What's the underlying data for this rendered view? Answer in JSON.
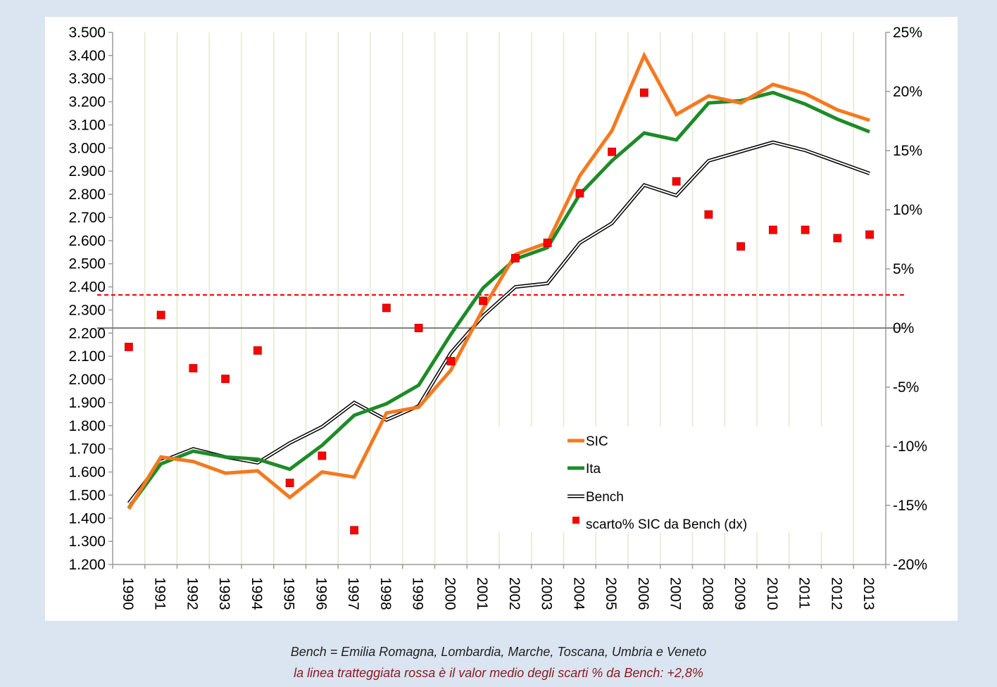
{
  "captions": {
    "line1": "Bench = Emilia Romagna, Lombardia, Marche, Toscana, Umbria e Veneto",
    "line2": "la linea tratteggiata rossa è il valor medio degli scarti % da Bench: +2,8%"
  },
  "colors": {
    "sic": "#f47920",
    "ita": "#1e8b28",
    "bench": "#000000",
    "scarto": "#ff0000",
    "mean_line": "#ff0000",
    "zero_line": "#808080",
    "grid": "#e4e8cf"
  },
  "chart_data": {
    "type": "line",
    "categories": [
      "1990",
      "1991",
      "1992",
      "1993",
      "1994",
      "1995",
      "1996",
      "1997",
      "1998",
      "1999",
      "2000",
      "2001",
      "2002",
      "2003",
      "2004",
      "2005",
      "2006",
      "2007",
      "2008",
      "2009",
      "2010",
      "2011",
      "2012",
      "2013"
    ],
    "left_axis": {
      "ylim": [
        1200,
        3500
      ],
      "tick_values": [
        1200,
        1300,
        1400,
        1500,
        1600,
        1700,
        1800,
        1900,
        2000,
        2100,
        2200,
        2300,
        2400,
        2500,
        2600,
        2700,
        2800,
        2900,
        3000,
        3100,
        3200,
        3300,
        3400,
        3500
      ],
      "tick_labels": [
        "1.200",
        "1.300",
        "1.400",
        "1.500",
        "1.600",
        "1.700",
        "1.800",
        "1.900",
        "2.000",
        "2.100",
        "2.200",
        "2.300",
        "2.400",
        "2.500",
        "2.600",
        "2.700",
        "2.800",
        "2.900",
        "3.000",
        "3.100",
        "3.200",
        "3.300",
        "3.400",
        "3.500"
      ]
    },
    "right_axis": {
      "ylim": [
        -20,
        25
      ],
      "tick_values": [
        -20,
        -15,
        -10,
        -5,
        0,
        5,
        10,
        15,
        20,
        25
      ],
      "tick_labels": [
        "-20%",
        "-15%",
        "-10%",
        "-5%",
        "0%",
        "5%",
        "10%",
        "15%",
        "20%",
        "25%"
      ]
    },
    "series": [
      {
        "name": "SIC",
        "axis": "left",
        "style": "line",
        "values": [
          1440,
          1665,
          1645,
          1595,
          1605,
          1490,
          1600,
          1578,
          1855,
          1880,
          2040,
          2305,
          2540,
          2590,
          2880,
          3075,
          3400,
          3145,
          3225,
          3195,
          3275,
          3235,
          3165,
          3120
        ]
      },
      {
        "name": "Ita",
        "axis": "left",
        "style": "line",
        "values": [
          1445,
          1635,
          1690,
          1665,
          1655,
          1612,
          1715,
          1845,
          1895,
          1975,
          2195,
          2395,
          2520,
          2570,
          2800,
          2945,
          3065,
          3035,
          3195,
          3205,
          3240,
          3190,
          3125,
          3070
        ]
      },
      {
        "name": "Bench",
        "axis": "left",
        "style": "double-line",
        "values": [
          1465,
          1645,
          1700,
          1665,
          1640,
          1725,
          1795,
          1900,
          1825,
          1885,
          2115,
          2275,
          2400,
          2415,
          2590,
          2675,
          2840,
          2795,
          2945,
          2985,
          3025,
          2990,
          2940,
          2890
        ]
      },
      {
        "name": "scarto% SIC da Bench (dx)",
        "axis": "right",
        "style": "markers",
        "values": [
          -1.6,
          1.1,
          -3.4,
          -4.3,
          -1.9,
          -13.1,
          -10.8,
          -17.1,
          1.7,
          0.0,
          -2.8,
          2.3,
          5.9,
          7.2,
          11.4,
          14.9,
          19.9,
          12.4,
          9.6,
          6.9,
          8.3,
          8.3,
          7.6,
          7.9
        ]
      }
    ],
    "reference_lines": [
      {
        "axis": "right",
        "value": 2.8,
        "style": "dashed"
      },
      {
        "axis": "right",
        "value": 0,
        "style": "solid"
      }
    ],
    "legend": {
      "placement": "lower-right inside plot",
      "entries": [
        "SIC",
        "Ita",
        "Bench",
        "scarto% SIC da Bench (dx)"
      ]
    },
    "grid": true
  }
}
